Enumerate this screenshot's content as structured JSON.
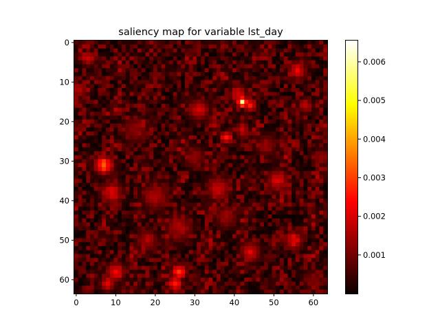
{
  "chart_data": {
    "type": "heatmap",
    "title": "saliency map for variable lst_day",
    "xlabel": "",
    "ylabel": "",
    "grid_size": [
      64,
      64
    ],
    "xlim": [
      -0.5,
      63.5
    ],
    "ylim": [
      63.5,
      -0.5
    ],
    "x_ticks": [
      0,
      10,
      20,
      30,
      40,
      50,
      60
    ],
    "y_ticks": [
      0,
      10,
      20,
      30,
      40,
      50,
      60
    ],
    "colormap": "hot",
    "colorbar": {
      "range": [
        0.0,
        0.00655
      ],
      "ticks": [
        0.001,
        0.002,
        0.003,
        0.004,
        0.005,
        0.006
      ],
      "tick_labels": [
        "0.001",
        "0.002",
        "0.003",
        "0.004",
        "0.005",
        "0.006"
      ]
    },
    "background_level": 0.0007,
    "hotspots": [
      {
        "x": 42,
        "y": 15,
        "value": 0.0066,
        "radius": 0.8
      },
      {
        "x": 44,
        "y": 16,
        "value": 0.0032,
        "radius": 1.0
      },
      {
        "x": 41,
        "y": 13,
        "value": 0.0024,
        "radius": 1.5
      },
      {
        "x": 38,
        "y": 24,
        "value": 0.0034,
        "radius": 1.0
      },
      {
        "x": 42,
        "y": 22,
        "value": 0.0022,
        "radius": 1.2
      },
      {
        "x": 7,
        "y": 31,
        "value": 0.0036,
        "radius": 1.6
      },
      {
        "x": 9,
        "y": 38,
        "value": 0.0022,
        "radius": 2.0
      },
      {
        "x": 26,
        "y": 58,
        "value": 0.0034,
        "radius": 1.3
      },
      {
        "x": 25,
        "y": 61,
        "value": 0.0028,
        "radius": 1.3
      },
      {
        "x": 10,
        "y": 58,
        "value": 0.0027,
        "radius": 1.6
      },
      {
        "x": 8,
        "y": 61,
        "value": 0.0022,
        "radius": 1.4
      },
      {
        "x": 55,
        "y": 50,
        "value": 0.0025,
        "radius": 1.6
      },
      {
        "x": 44,
        "y": 53,
        "value": 0.0022,
        "radius": 1.8
      },
      {
        "x": 56,
        "y": 7,
        "value": 0.0023,
        "radius": 1.6
      },
      {
        "x": 3,
        "y": 4,
        "value": 0.0022,
        "radius": 1.3
      },
      {
        "x": 58,
        "y": 16,
        "value": 0.002,
        "radius": 1.3
      },
      {
        "x": 36,
        "y": 37,
        "value": 0.0019,
        "radius": 2.2
      },
      {
        "x": 51,
        "y": 35,
        "value": 0.0021,
        "radius": 2.0
      },
      {
        "x": 20,
        "y": 39,
        "value": 0.0017,
        "radius": 2.5
      },
      {
        "x": 31,
        "y": 17,
        "value": 0.002,
        "radius": 2.0
      },
      {
        "x": 26,
        "y": 47,
        "value": 0.0017,
        "radius": 2.5
      },
      {
        "x": 18,
        "y": 50,
        "value": 0.0017,
        "radius": 2.0
      },
      {
        "x": 62,
        "y": 29,
        "value": 0.0016,
        "radius": 1.5
      },
      {
        "x": 15,
        "y": 22,
        "value": 0.0014,
        "radius": 2.5
      },
      {
        "x": 48,
        "y": 26,
        "value": 0.0015,
        "radius": 2.0
      },
      {
        "x": 30,
        "y": 29,
        "value": 0.0014,
        "radius": 2.0
      },
      {
        "x": 38,
        "y": 44,
        "value": 0.0016,
        "radius": 2.0
      },
      {
        "x": 60,
        "y": 60,
        "value": 0.0012,
        "radius": 2.0
      }
    ]
  }
}
